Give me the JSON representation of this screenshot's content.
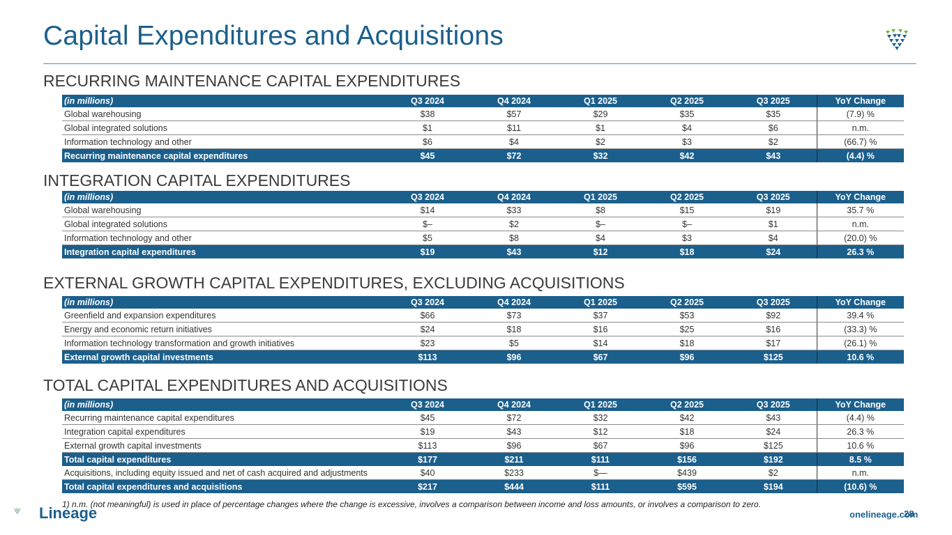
{
  "title": "Capital Expenditures and Acquisitions",
  "colors": {
    "brand_blue": "#1b5f8c",
    "brand_green": "#6db33f",
    "white": "#ffffff"
  },
  "header": [
    "(in millions)",
    "Q3 2024",
    "Q4 2024",
    "Q1 2025",
    "Q2 2025",
    "Q3 2025",
    "YoY  Change"
  ],
  "sections": [
    {
      "title": "RECURRING MAINTENANCE CAPITAL EXPENDITURES",
      "rows": [
        {
          "label": "Global warehousing",
          "values": [
            "$38",
            "$57",
            "$29",
            "$35",
            "$35"
          ],
          "yoy": "(7.9) %"
        },
        {
          "label": "Global integrated solutions",
          "values": [
            "$1",
            "$11",
            "$1",
            "$4",
            "$6"
          ],
          "yoy": "n.m."
        },
        {
          "label": "Information technology and other",
          "values": [
            "$6",
            "$4",
            "$2",
            "$3",
            "$2"
          ],
          "yoy": "(66.7) %"
        },
        {
          "label": "Recurring maintenance capital expenditures",
          "values": [
            "$45",
            "$72",
            "$32",
            "$42",
            "$43"
          ],
          "yoy": "(4.4) %",
          "total": true
        }
      ]
    },
    {
      "title": "INTEGRATION CAPITAL EXPENDITURES",
      "rows": [
        {
          "label": "Global warehousing",
          "values": [
            "$14",
            "$33",
            "$8",
            "$15",
            "$19"
          ],
          "yoy": "35.7 %"
        },
        {
          "label": "Global integrated solutions",
          "values": [
            "$–",
            "$2",
            "$–",
            "$–",
            "$1"
          ],
          "yoy": "n.m."
        },
        {
          "label": "Information technology and other",
          "values": [
            "$5",
            "$8",
            "$4",
            "$3",
            "$4"
          ],
          "yoy": "(20.0) %"
        },
        {
          "label": "Integration capital expenditures",
          "values": [
            "$19",
            "$43",
            "$12",
            "$18",
            "$24"
          ],
          "yoy": "26.3 %",
          "total": true
        }
      ]
    },
    {
      "title": "EXTERNAL GROWTH CAPITAL EXPENDITURES, EXCLUDING ACQUISITIONS",
      "rows": [
        {
          "label": "Greenfield and expansion expenditures",
          "values": [
            "$66",
            "$73",
            "$37",
            "$53",
            "$92"
          ],
          "yoy": "39.4 %"
        },
        {
          "label": "Energy and economic return initiatives",
          "values": [
            "$24",
            "$18",
            "$16",
            "$25",
            "$16"
          ],
          "yoy": "(33.3) %"
        },
        {
          "label": "Information technology transformation and growth initiatives",
          "values": [
            "$23",
            "$5",
            "$14",
            "$18",
            "$17"
          ],
          "yoy": "(26.1) %"
        },
        {
          "label": "External growth capital investments",
          "values": [
            "$113",
            "$96",
            "$67",
            "$96",
            "$125"
          ],
          "yoy": "10.6 %",
          "total": true
        }
      ]
    },
    {
      "title": "TOTAL CAPITAL EXPENDITURES AND ACQUISITIONS",
      "rows": [
        {
          "label": "Recurring maintenance capital expenditures",
          "values": [
            "$45",
            "$72",
            "$32",
            "$42",
            "$43"
          ],
          "yoy": "(4.4) %"
        },
        {
          "label": "Integration capital expenditures",
          "values": [
            "$19",
            "$43",
            "$12",
            "$18",
            "$24"
          ],
          "yoy": "26.3 %"
        },
        {
          "label": "External growth capital investments",
          "values": [
            "$113",
            "$96",
            "$67",
            "$96",
            "$125"
          ],
          "yoy": "10.6 %"
        },
        {
          "label": "Total capital expenditures",
          "values": [
            "$177",
            "$211",
            "$111",
            "$156",
            "$192"
          ],
          "yoy": "8.5 %",
          "total": true
        },
        {
          "label": "Acquisitions, including equity issued and net of cash acquired and adjustments",
          "values": [
            "$40",
            "$233",
            "$—",
            "$439",
            "$2"
          ],
          "yoy": "n.m."
        },
        {
          "label": "Total capital expenditures and acquisitions",
          "values": [
            "$217",
            "$444",
            "$111",
            "$595",
            "$194"
          ],
          "yoy": "(10.6) %",
          "total": true
        }
      ]
    }
  ],
  "footnote": "1) n.m. (not meaningful) is used in place of percentage changes where the change is excessive, involves a comparison between income and loss amounts, or involves a comparison to zero.",
  "footer": {
    "brand": "Lineage",
    "website": "onelineage.com",
    "page_number": "28"
  },
  "icons": {
    "top_logo": "lineage-shield-icon",
    "bottom_logo": "lineage-logo-icon"
  }
}
